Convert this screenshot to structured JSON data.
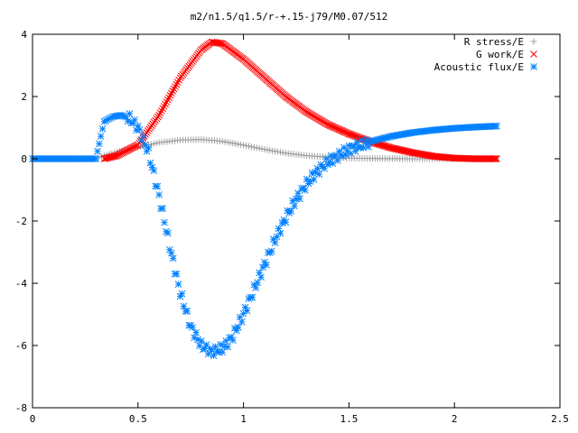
{
  "chart_data": {
    "type": "scatter",
    "title": "m2/n1.5/q1.5/r-+.15-j79/M0.07/512",
    "xlabel": "",
    "ylabel": "",
    "xlim": [
      0,
      2.5
    ],
    "ylim": [
      -8,
      4
    ],
    "x_ticks": [
      0,
      0.5,
      1,
      1.5,
      2,
      2.5
    ],
    "x_tick_labels": [
      "0",
      "0.5",
      "1",
      "1.5",
      "2",
      "2.5"
    ],
    "y_ticks": [
      -8,
      -6,
      -4,
      -2,
      0,
      2,
      4
    ],
    "y_tick_labels": [
      "-8",
      "-6",
      "-4",
      "-2",
      "0",
      "2",
      "4"
    ],
    "grid": false,
    "legend_position": "top-right",
    "series": [
      {
        "name": "R stress/E",
        "marker": "plus",
        "color": "#a0a0a0",
        "x": [
          0.0,
          0.1,
          0.2,
          0.3,
          0.34,
          0.4,
          0.5,
          0.6,
          0.7,
          0.8,
          0.9,
          1.0,
          1.1,
          1.2,
          1.3,
          1.4,
          1.5,
          1.6,
          1.8,
          2.0,
          2.2
        ],
        "y": [
          0.0,
          0.0,
          0.0,
          0.0,
          0.1,
          0.22,
          0.38,
          0.52,
          0.6,
          0.62,
          0.56,
          0.44,
          0.3,
          0.18,
          0.1,
          0.05,
          0.02,
          0.01,
          0.0,
          0.0,
          0.0
        ]
      },
      {
        "name": "G work/E",
        "marker": "cross",
        "color": "#ff0000",
        "x": [
          0.34,
          0.4,
          0.5,
          0.6,
          0.7,
          0.8,
          0.85,
          0.9,
          1.0,
          1.1,
          1.2,
          1.3,
          1.4,
          1.5,
          1.6,
          1.7,
          1.8,
          1.9,
          2.0,
          2.1,
          2.2
        ],
        "y": [
          0.0,
          0.1,
          0.45,
          1.4,
          2.6,
          3.5,
          3.75,
          3.7,
          3.2,
          2.6,
          2.0,
          1.5,
          1.1,
          0.8,
          0.55,
          0.35,
          0.2,
          0.08,
          0.02,
          0.0,
          0.0
        ]
      },
      {
        "name": "Acoustic flux/E",
        "marker": "star",
        "color": "#0080ff",
        "x": [
          0.0,
          0.1,
          0.2,
          0.3,
          0.34,
          0.38,
          0.42,
          0.46,
          0.5,
          0.55,
          0.6,
          0.65,
          0.7,
          0.75,
          0.8,
          0.85,
          0.9,
          0.95,
          1.0,
          1.05,
          1.1,
          1.15,
          1.2,
          1.25,
          1.3,
          1.35,
          1.4,
          1.5,
          1.6,
          1.7,
          1.8,
          1.9,
          2.0,
          2.1,
          2.2
        ],
        "y": [
          0.0,
          0.0,
          0.0,
          0.0,
          1.2,
          1.35,
          1.4,
          1.3,
          1.0,
          0.2,
          -1.2,
          -2.8,
          -4.3,
          -5.4,
          -6.0,
          -6.2,
          -6.1,
          -5.7,
          -5.0,
          -4.2,
          -3.4,
          -2.6,
          -1.9,
          -1.3,
          -0.8,
          -0.4,
          -0.1,
          0.3,
          0.55,
          0.72,
          0.84,
          0.92,
          0.98,
          1.02,
          1.05
        ]
      }
    ]
  }
}
